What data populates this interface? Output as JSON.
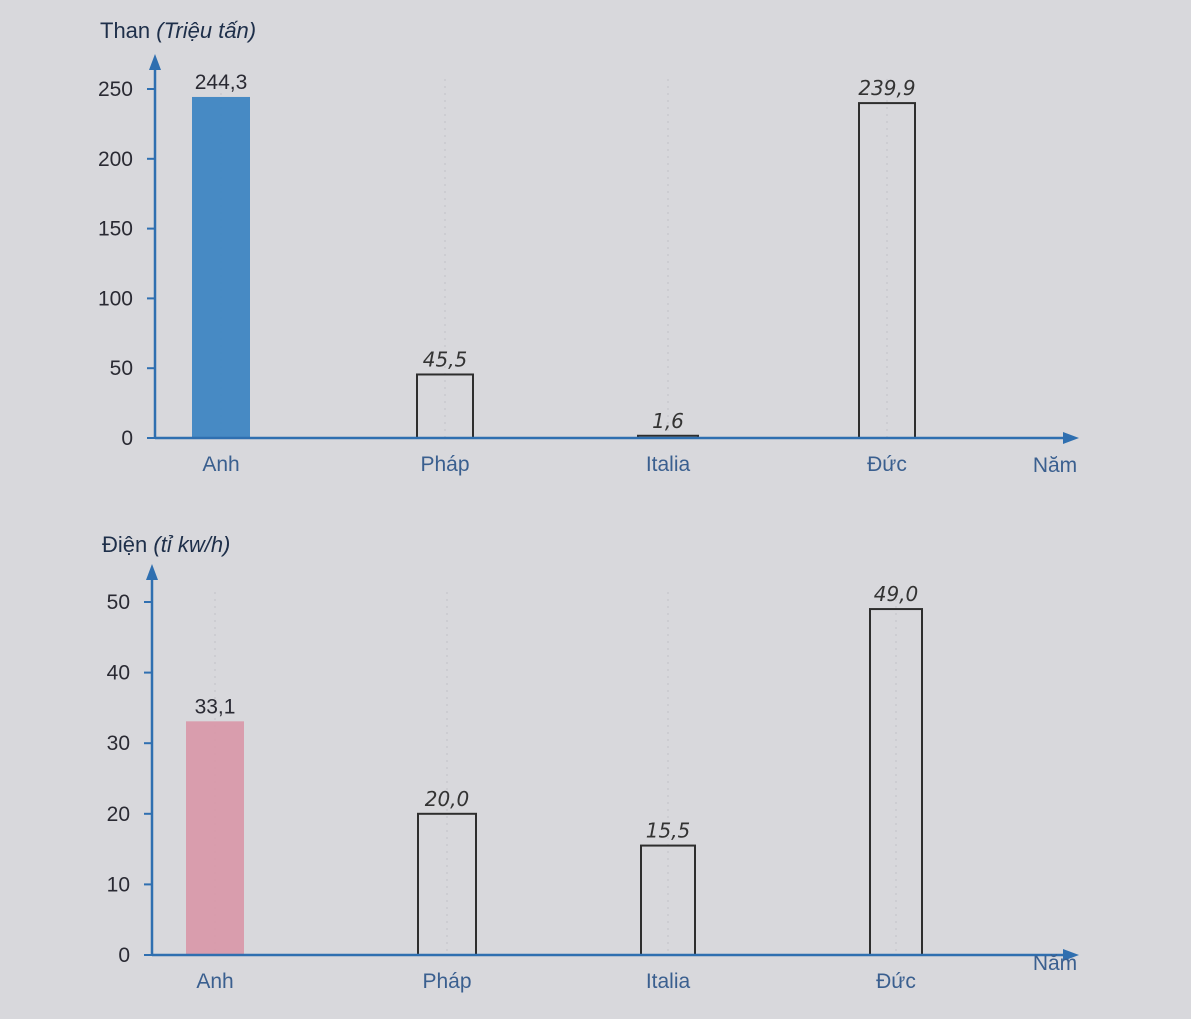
{
  "chart_data": [
    {
      "type": "bar",
      "title_main": "Than",
      "title_unit": "(Triệu tấn)",
      "xlabel": "Năm",
      "categories": [
        "Anh",
        "Pháp",
        "Italia",
        "Đức"
      ],
      "values": [
        244.3,
        45.5,
        1.6,
        239.9
      ],
      "value_labels": [
        "244,3",
        "45,5",
        "1,6",
        "239,9"
      ],
      "yticks": [
        "0",
        "50",
        "100",
        "150",
        "200",
        "250"
      ],
      "ylim": [
        0,
        250
      ],
      "fill_colors": [
        "#3f86c2",
        null,
        null,
        null
      ],
      "grid": false
    },
    {
      "type": "bar",
      "title_main": "Điện",
      "title_unit": "(tỉ kw/h)",
      "xlabel": "Năm",
      "categories": [
        "Anh",
        "Pháp",
        "Italia",
        "Đức"
      ],
      "values": [
        33.1,
        20.0,
        15.5,
        49.0
      ],
      "value_labels": [
        "33,1",
        "20,0",
        "15,5",
        "49,0"
      ],
      "yticks": [
        "0",
        "10",
        "20",
        "30",
        "40",
        "50"
      ],
      "ylim": [
        0,
        50
      ],
      "fill_colors": [
        "#d99aaa",
        null,
        null,
        null
      ],
      "grid": false
    }
  ]
}
